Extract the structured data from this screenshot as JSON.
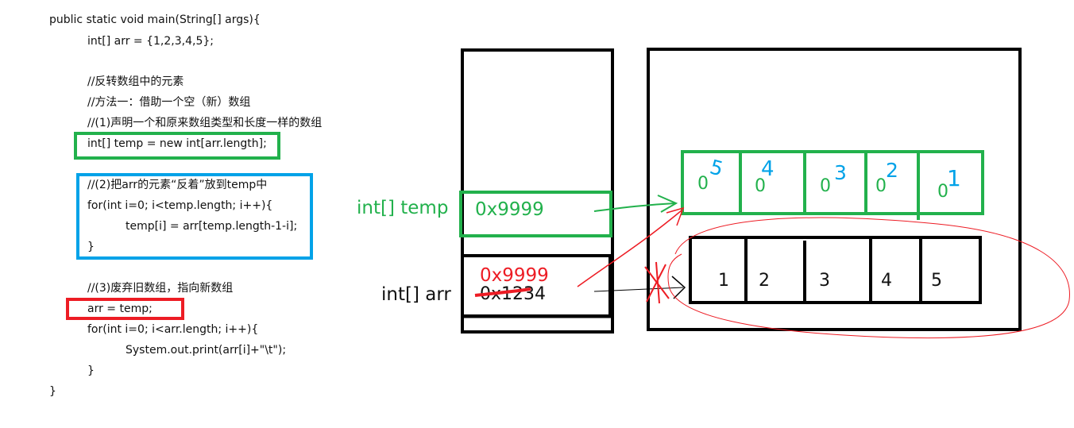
{
  "code": {
    "lines": [
      "public static void main(String[] args){",
      "int[] arr = {1,2,3,4,5};",
      "//反转数组中的元素",
      "//方法一：借助一个空（新）数组",
      "//(1)声明一个和原来数组类型和长度一样的数组",
      "int[] temp = new int[arr.length];",
      "//(2)把arr的元素“反着”放到temp中",
      "for(int i=0; i<temp.length; i++){",
      "temp[i] = arr[temp.length-1-i];",
      "}",
      "//(3)废弃旧数组，指向新数组",
      "arr = temp;",
      "for(int i=0; i<arr.length; i++){",
      "System.out.print(arr[i]+\"\\t\");",
      "}",
      "}"
    ]
  },
  "stack": {
    "temp_label": "int[] temp",
    "temp_value": "0x9999",
    "arr_label": "int[] arr",
    "arr_new_value": "0x9999",
    "arr_old_value": "0x1234"
  },
  "heap": {
    "new_array_cells": [
      {
        "zero": "0",
        "written": "5"
      },
      {
        "zero": "0",
        "written": "4"
      },
      {
        "zero": "0",
        "written": "3"
      },
      {
        "zero": "0",
        "written": "2"
      },
      {
        "zero": "0",
        "written": "1"
      }
    ],
    "old_array_values": [
      "1",
      "2",
      "3",
      "4",
      "5"
    ]
  },
  "colors": {
    "green": "#22b14c",
    "blue": "#00a2e8",
    "red": "#ed1c24",
    "black": "#000000"
  }
}
